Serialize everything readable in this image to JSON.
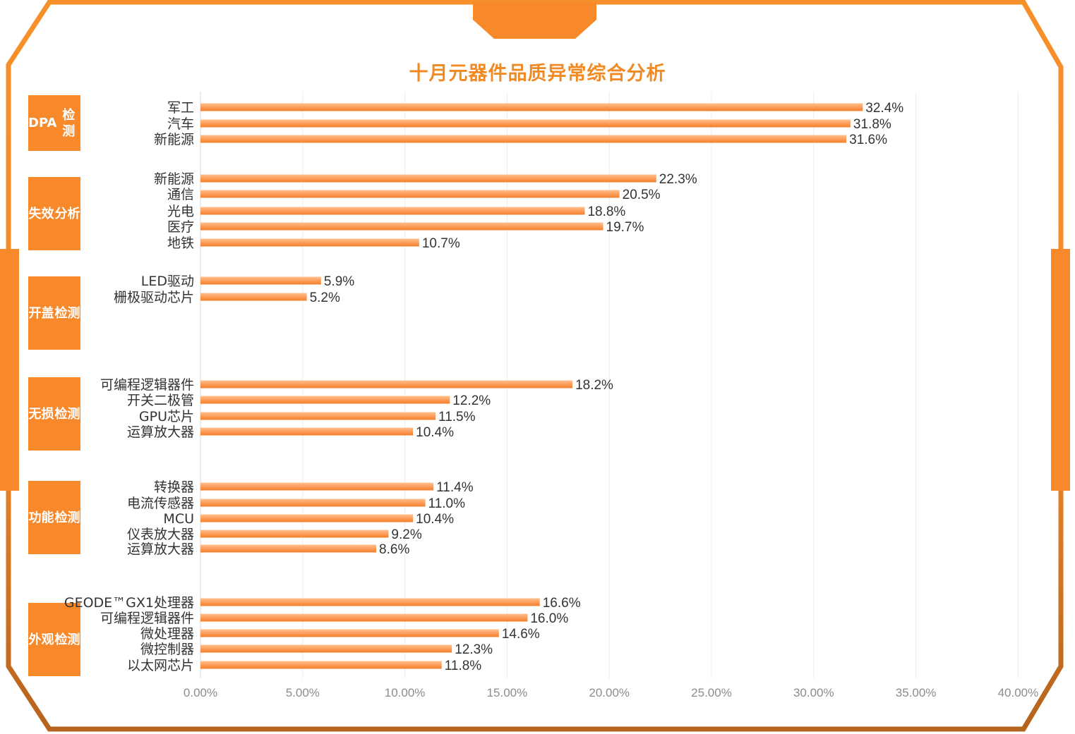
{
  "title": "十月元器件品质异常综合分析",
  "colors": {
    "accent": "#f7892b",
    "bar_top": "#ffb079",
    "bar_bottom": "#f4862c",
    "frame": "#f5902c",
    "frame_dark": "#b4621c"
  },
  "chart_data": {
    "type": "bar",
    "orientation": "horizontal",
    "title": "十月元器件品质异常综合分析",
    "xlim": [
      0,
      40
    ],
    "x_ticks": [
      "0.00%",
      "5.00%",
      "10.00%",
      "15.00%",
      "20.00%",
      "25.00%",
      "30.00%",
      "35.00%",
      "40.00%"
    ],
    "grid": "vertical",
    "groups": [
      {
        "category": "DPA检测",
        "category_lines": [
          "DPA",
          "检测"
        ],
        "items": [
          {
            "label": "军工",
            "value": 32.4,
            "value_label": "32.4%"
          },
          {
            "label": "汽车",
            "value": 31.8,
            "value_label": "31.8%"
          },
          {
            "label": "新能源",
            "value": 31.6,
            "value_label": "31.6%"
          }
        ]
      },
      {
        "category": "失效分析",
        "category_lines": [
          "失效",
          "分析"
        ],
        "items": [
          {
            "label": "新能源",
            "value": 22.3,
            "value_label": "22.3%"
          },
          {
            "label": "通信",
            "value": 20.5,
            "value_label": "20.5%"
          },
          {
            "label": "光电",
            "value": 18.8,
            "value_label": "18.8%"
          },
          {
            "label": "医疗",
            "value": 19.7,
            "value_label": "19.7%"
          },
          {
            "label": "地铁",
            "value": 10.7,
            "value_label": "10.7%"
          }
        ]
      },
      {
        "category": "开盖检测",
        "category_lines": [
          "开盖",
          "检测"
        ],
        "items": [
          {
            "label": "LED驱动",
            "value": 5.9,
            "value_label": "5.9%"
          },
          {
            "label": "栅极驱动芯片",
            "value": 5.2,
            "value_label": "5.2%"
          }
        ]
      },
      {
        "category": "无损检测",
        "category_lines": [
          "无损",
          "检测"
        ],
        "items": [
          {
            "label": "可编程逻辑器件",
            "value": 18.2,
            "value_label": "18.2%"
          },
          {
            "label": "开关二极管",
            "value": 12.2,
            "value_label": "12.2%"
          },
          {
            "label": "GPU芯片",
            "value": 11.5,
            "value_label": "11.5%"
          },
          {
            "label": "运算放大器",
            "value": 10.4,
            "value_label": "10.4%"
          }
        ]
      },
      {
        "category": "功能检测",
        "category_lines": [
          "功能",
          "检测"
        ],
        "items": [
          {
            "label": "转换器",
            "value": 11.4,
            "value_label": "11.4%"
          },
          {
            "label": "电流传感器",
            "value": 11.0,
            "value_label": "11.0%"
          },
          {
            "label": "MCU",
            "value": 10.4,
            "value_label": "10.4%"
          },
          {
            "label": "仪表放大器",
            "value": 9.2,
            "value_label": "9.2%"
          },
          {
            "label": "运算放大器",
            "value": 8.6,
            "value_label": "8.6%"
          }
        ]
      },
      {
        "category": "外观检测",
        "category_lines": [
          "外观",
          "检测"
        ],
        "items": [
          {
            "label": "GEODE™GX1处理器",
            "value": 16.6,
            "value_label": "16.6%"
          },
          {
            "label": "可编程逻辑器件",
            "value": 16.0,
            "value_label": "16.0%"
          },
          {
            "label": "微处理器",
            "value": 14.6,
            "value_label": "14.6%"
          },
          {
            "label": "微控制器",
            "value": 12.3,
            "value_label": "12.3%"
          },
          {
            "label": "以太网芯片",
            "value": 11.8,
            "value_label": "11.8%"
          }
        ]
      }
    ]
  }
}
